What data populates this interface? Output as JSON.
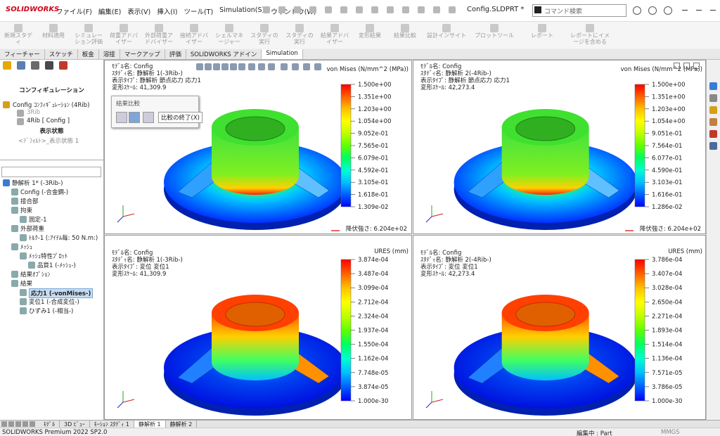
{
  "title_bar": {
    "logo": "SOLIDWORKS",
    "menus": [
      "ファイル(F)",
      "編集(E)",
      "表示(V)",
      "挿入(I)",
      "ツール(T)",
      "Simulation(S)",
      "ウィンドウ(W)"
    ],
    "document": "Config.SLDPRT *",
    "search": "コマンド検索"
  },
  "toolbar": [
    "新規スタディ",
    "材料適用",
    "シミュレーション評価",
    "荷重アドバイザー",
    "外部荷重アドバイザー",
    "接続アドバイザー",
    "シェルマネージャー",
    "スタディの実行",
    "スタディの実行",
    "結果アドバイザー",
    "変形結果",
    "結果比較",
    "設計インサイト",
    "プロットツール",
    "レポート",
    "レポートにイメージを含める"
  ],
  "tabs": [
    "フィーチャー",
    "スケッチ",
    "板金",
    "溶接",
    "マークアップ",
    "評価",
    "SOLIDWORKS アドイン",
    "Simulation"
  ],
  "config_panel": {
    "heading": "コンフィギュレーション",
    "items": [
      "Config ｺﾝﾌｨｷﾞｭﾚｰｼｮﾝ (4Rib)",
      "3Rib",
      "4Rib [ Config ]"
    ],
    "display_heading": "表示状態",
    "display_item": "<ﾃﾞﾌｫﾙﾄ>_表示状態 1"
  },
  "study_tree": [
    "静解析 1* (-3Rib-)",
    "Config (-合金鋼-)",
    "接合部",
    "拘束",
    "固定-1",
    "外部荷重",
    "ﾄﾙｸ-1 (:ｱｲﾃﾑ毎: 50 N.m:)",
    "ﾒｯｼｭ",
    "ﾒｯｼｭ特性ﾌﾟﾛｯﾄ",
    "品質1 (-ﾒｯｼｭ-)",
    "結果ｵﾌﾟｼｮﾝ",
    "結果",
    "応力1 (-vonMises-)",
    "変位1 (-合成変位-)",
    "ひずみ1 (-相当-)"
  ],
  "compare_popup": {
    "title": "結果比較",
    "button": "比較の終了(X)"
  },
  "viewports": [
    {
      "info": [
        "ﾓﾃﾞﾙ名: Config",
        "ｽﾀﾃﾞｨ名: 静解析 1(-3Rib-)",
        "表示ﾀｲﾌﾟ: 静解析 節点応力 応力1",
        "変形ｽｹｰﾙ: 41,309.9"
      ],
      "legend_title": "von Mises (N/mm^2 (MPa))",
      "legend_labels": [
        "1.500e+00",
        "1.351e+00",
        "1.203e+00",
        "1.054e+00",
        "9.052e-01",
        "7.565e-01",
        "6.079e-01",
        "4.592e-01",
        "3.105e-01",
        "1.618e-01",
        "1.309e-02"
      ],
      "yield": "降伏強さ: 6.204e+02"
    },
    {
      "info": [
        "ﾓﾃﾞﾙ名: Config",
        "ｽﾀﾃﾞｨ名: 静解析 2(-4Rib-)",
        "表示ﾀｲﾌﾟ: 静解析 節点応力 応力1",
        "変形ｽｹｰﾙ: 42,273.4"
      ],
      "legend_title": "von Mises (N/mm^2 (MPa))",
      "legend_labels": [
        "1.500e+00",
        "1.351e+00",
        "1.203e+00",
        "1.054e+00",
        "9.051e-01",
        "7.564e-01",
        "6.077e-01",
        "4.590e-01",
        "3.103e-01",
        "1.616e-01",
        "1.286e-02"
      ],
      "yield": "降伏強さ: 6.204e+02"
    },
    {
      "info": [
        "ﾓﾃﾞﾙ名: Config",
        "ｽﾀﾃﾞｨ名: 静解析 1(-3Rib-)",
        "表示ﾀｲﾌﾟ: 変位 変位1",
        "変形ｽｹｰﾙ: 41,309.9"
      ],
      "legend_title": "URES (mm)",
      "legend_labels": [
        "3.874e-04",
        "3.487e-04",
        "3.099e-04",
        "2.712e-04",
        "2.324e-04",
        "1.937e-04",
        "1.550e-04",
        "1.162e-04",
        "7.748e-05",
        "3.874e-05",
        "1.000e-30"
      ]
    },
    {
      "info": [
        "ﾓﾃﾞﾙ名: Config",
        "ｽﾀﾃﾞｨ名: 静解析 2(-4Rib-)",
        "表示ﾀｲﾌﾟ: 変位 変位1",
        "変形ｽｹｰﾙ: 42,273.4"
      ],
      "legend_title": "URES (mm)",
      "legend_labels": [
        "3.786e-04",
        "3.407e-04",
        "3.028e-04",
        "2.650e-04",
        "2.271e-04",
        "1.893e-04",
        "1.514e-04",
        "1.136e-04",
        "7.571e-05",
        "3.786e-05",
        "1.000e-30"
      ]
    }
  ],
  "bottom_tabs": [
    "ﾓﾃﾞﾙ",
    "3D ﾋﾞｭｰ",
    "ﾓｰｼｮﾝ ｽﾀﾃﾞｨ 1",
    "静解析 1",
    "静解析 2"
  ],
  "status_bar": {
    "product": "SOLIDWORKS Premium 2022 SP2.0",
    "mode": "編集中 : Part",
    "units": "MMGS"
  }
}
